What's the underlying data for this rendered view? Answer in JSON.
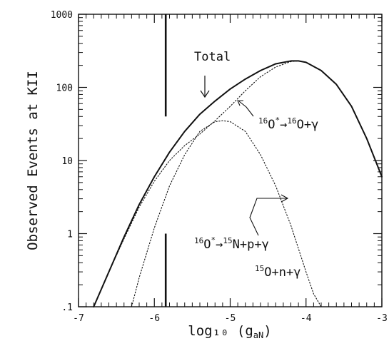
{
  "chart_data": {
    "type": "line",
    "xlabel": "log₁₀ (g",
    "xlabel_sub": "aN",
    "xlabel_close": ")",
    "ylabel": "Observed Events at KII",
    "xlim": [
      -7,
      -3
    ],
    "ylim": [
      0.1,
      1000
    ],
    "yscale": "log",
    "x_ticks": [
      -7,
      -6,
      -5,
      -4,
      -3
    ],
    "x_tick_labels": [
      "-7",
      "-6",
      "-5",
      "-4",
      "-3"
    ],
    "y_ticks": [
      0.1,
      1,
      10,
      100,
      1000
    ],
    "y_tick_labels": [
      ".1",
      "1",
      "10",
      "100",
      "1000"
    ],
    "grid": false,
    "series": [
      {
        "name": "Total",
        "style": "solid",
        "x": [
          -6.8,
          -6.6,
          -6.4,
          -6.2,
          -6.0,
          -5.8,
          -5.6,
          -5.4,
          -5.2,
          -5.0,
          -4.8,
          -4.6,
          -4.4,
          -4.2,
          -4.1,
          -4.0,
          -3.8,
          -3.6,
          -3.4,
          -3.2,
          -3.0
        ],
        "y": [
          0.1,
          0.3,
          0.9,
          2.5,
          6.0,
          13,
          25,
          43,
          65,
          95,
          130,
          170,
          210,
          230,
          230,
          220,
          170,
          110,
          55,
          20,
          6
        ]
      },
      {
        "name": "16O* -> 16O + gamma",
        "style": "dotted",
        "x": [
          -6.8,
          -6.6,
          -6.4,
          -6.2,
          -6.0,
          -5.8,
          -5.6,
          -5.4,
          -5.2,
          -5.0,
          -4.8,
          -4.6,
          -4.4,
          -4.2,
          -4.1,
          -4.0,
          -3.8,
          -3.6,
          -3.4,
          -3.2,
          -3.0
        ],
        "y": [
          0.1,
          0.3,
          0.85,
          2.3,
          5.2,
          10,
          16,
          23,
          35,
          55,
          90,
          140,
          190,
          225,
          230,
          220,
          170,
          110,
          55,
          20,
          6
        ]
      },
      {
        "name": "16O* -> 15N + p + gamma / 15O + n + gamma",
        "style": "dotted",
        "x": [
          -6.3,
          -6.2,
          -6.0,
          -5.8,
          -5.6,
          -5.4,
          -5.2,
          -5.1,
          -5.0,
          -4.8,
          -4.6,
          -4.4,
          -4.2,
          -4.0,
          -3.9,
          -3.8
        ],
        "y": [
          0.1,
          0.25,
          1.2,
          4.5,
          12,
          25,
          34,
          35,
          34,
          25,
          12,
          4.5,
          1.3,
          0.3,
          0.15,
          0.1
        ]
      }
    ],
    "vertical_markers": [
      {
        "x": -5.85,
        "y_from": 40,
        "y_to": 1000
      },
      {
        "x": -5.85,
        "y_from": 0.1,
        "y_to": 1
      }
    ],
    "annotations": {
      "total": "Total",
      "gamma_reaction": {
        "p1_sup": "16",
        "p1": "O",
        "p1_star": "*",
        "arrow": "→",
        "p2_sup": "16",
        "p2": "O+γ"
      },
      "nucleon_reaction_line1": {
        "p1_sup": "16",
        "p1": "O",
        "p1_star": "*",
        "arrow": "→",
        "p2_sup": "15",
        "p2": "N+p+γ"
      },
      "nucleon_reaction_line2": {
        "p1_sup": "15",
        "p1": "O+n+γ"
      }
    }
  }
}
